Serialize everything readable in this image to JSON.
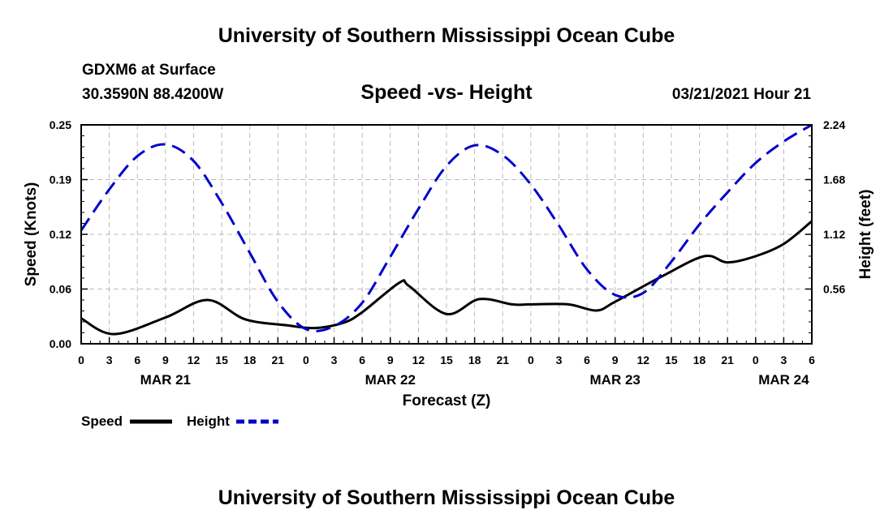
{
  "header": {
    "title": "University of Southern Mississippi Ocean Cube",
    "station": "GDXM6 at Surface",
    "coords": "30.3590N 88.4200W",
    "subtitle": "Speed -vs- Height",
    "datetime": "03/21/2021 Hour 21"
  },
  "footer": {
    "title": "University of Southern Mississippi Ocean Cube"
  },
  "chart_data": {
    "type": "line",
    "title": "Speed -vs- Height",
    "xlabel": "Forecast (Z)",
    "ylabel": "Speed (Knots)",
    "y2label": "Height (feet)",
    "grid": true,
    "x_unit": "hours from Mar 21 00Z",
    "xlim": [
      0,
      78
    ],
    "ylim": [
      0,
      0.25
    ],
    "y2lim": [
      0,
      2.24
    ],
    "y_ticks": [
      "0.00",
      "0.06",
      "0.12",
      "0.19",
      "0.25"
    ],
    "y2_ticks": [
      "0.56",
      "1.12",
      "1.68",
      "2.24"
    ],
    "x_ticks": [
      "0",
      "3",
      "6",
      "9",
      "12",
      "15",
      "18",
      "21",
      "0",
      "3",
      "6",
      "9",
      "12",
      "15",
      "18",
      "21",
      "0",
      "3",
      "6",
      "9",
      "12",
      "15",
      "18",
      "21",
      "0",
      "3",
      "6"
    ],
    "date_labels": [
      {
        "label": "MAR 21",
        "x": 9
      },
      {
        "label": "MAR 22",
        "x": 33
      },
      {
        "label": "MAR 23",
        "x": 57
      },
      {
        "label": "MAR 24",
        "x": 75
      }
    ],
    "colors": {
      "speed": "#000000",
      "height": "#0000cc",
      "grid": "#bbbbbb"
    },
    "series": [
      {
        "name": "Speed",
        "axis": "left",
        "x": [
          0,
          3.5,
          9,
          13.5,
          17.5,
          22,
          25,
          28,
          30,
          34,
          35,
          39,
          42.5,
          46,
          48,
          52,
          55,
          57,
          62,
          66.5,
          69,
          72,
          75,
          78
        ],
        "values": [
          0.029,
          0.011,
          0.03,
          0.05,
          0.028,
          0.021,
          0.018,
          0.024,
          0.036,
          0.07,
          0.066,
          0.034,
          0.051,
          0.045,
          0.045,
          0.045,
          0.038,
          0.048,
          0.077,
          0.1,
          0.093,
          0.1,
          0.114,
          0.14
        ]
      },
      {
        "name": "Height",
        "axis": "right",
        "x": [
          0,
          3,
          6,
          9,
          12,
          15,
          18,
          21,
          24,
          27,
          30,
          33,
          36,
          39,
          42,
          45,
          48,
          51,
          54,
          57,
          60,
          63,
          66,
          69,
          72,
          75,
          78
        ],
        "values": [
          1.16,
          1.58,
          1.92,
          2.04,
          1.87,
          1.44,
          0.93,
          0.43,
          0.15,
          0.18,
          0.42,
          0.89,
          1.38,
          1.82,
          2.03,
          1.93,
          1.63,
          1.21,
          0.76,
          0.5,
          0.52,
          0.84,
          1.22,
          1.55,
          1.85,
          2.07,
          2.24
        ]
      }
    ],
    "legend": [
      {
        "label": "Speed",
        "series": "Speed"
      },
      {
        "label": "Height",
        "series": "Height"
      }
    ]
  }
}
